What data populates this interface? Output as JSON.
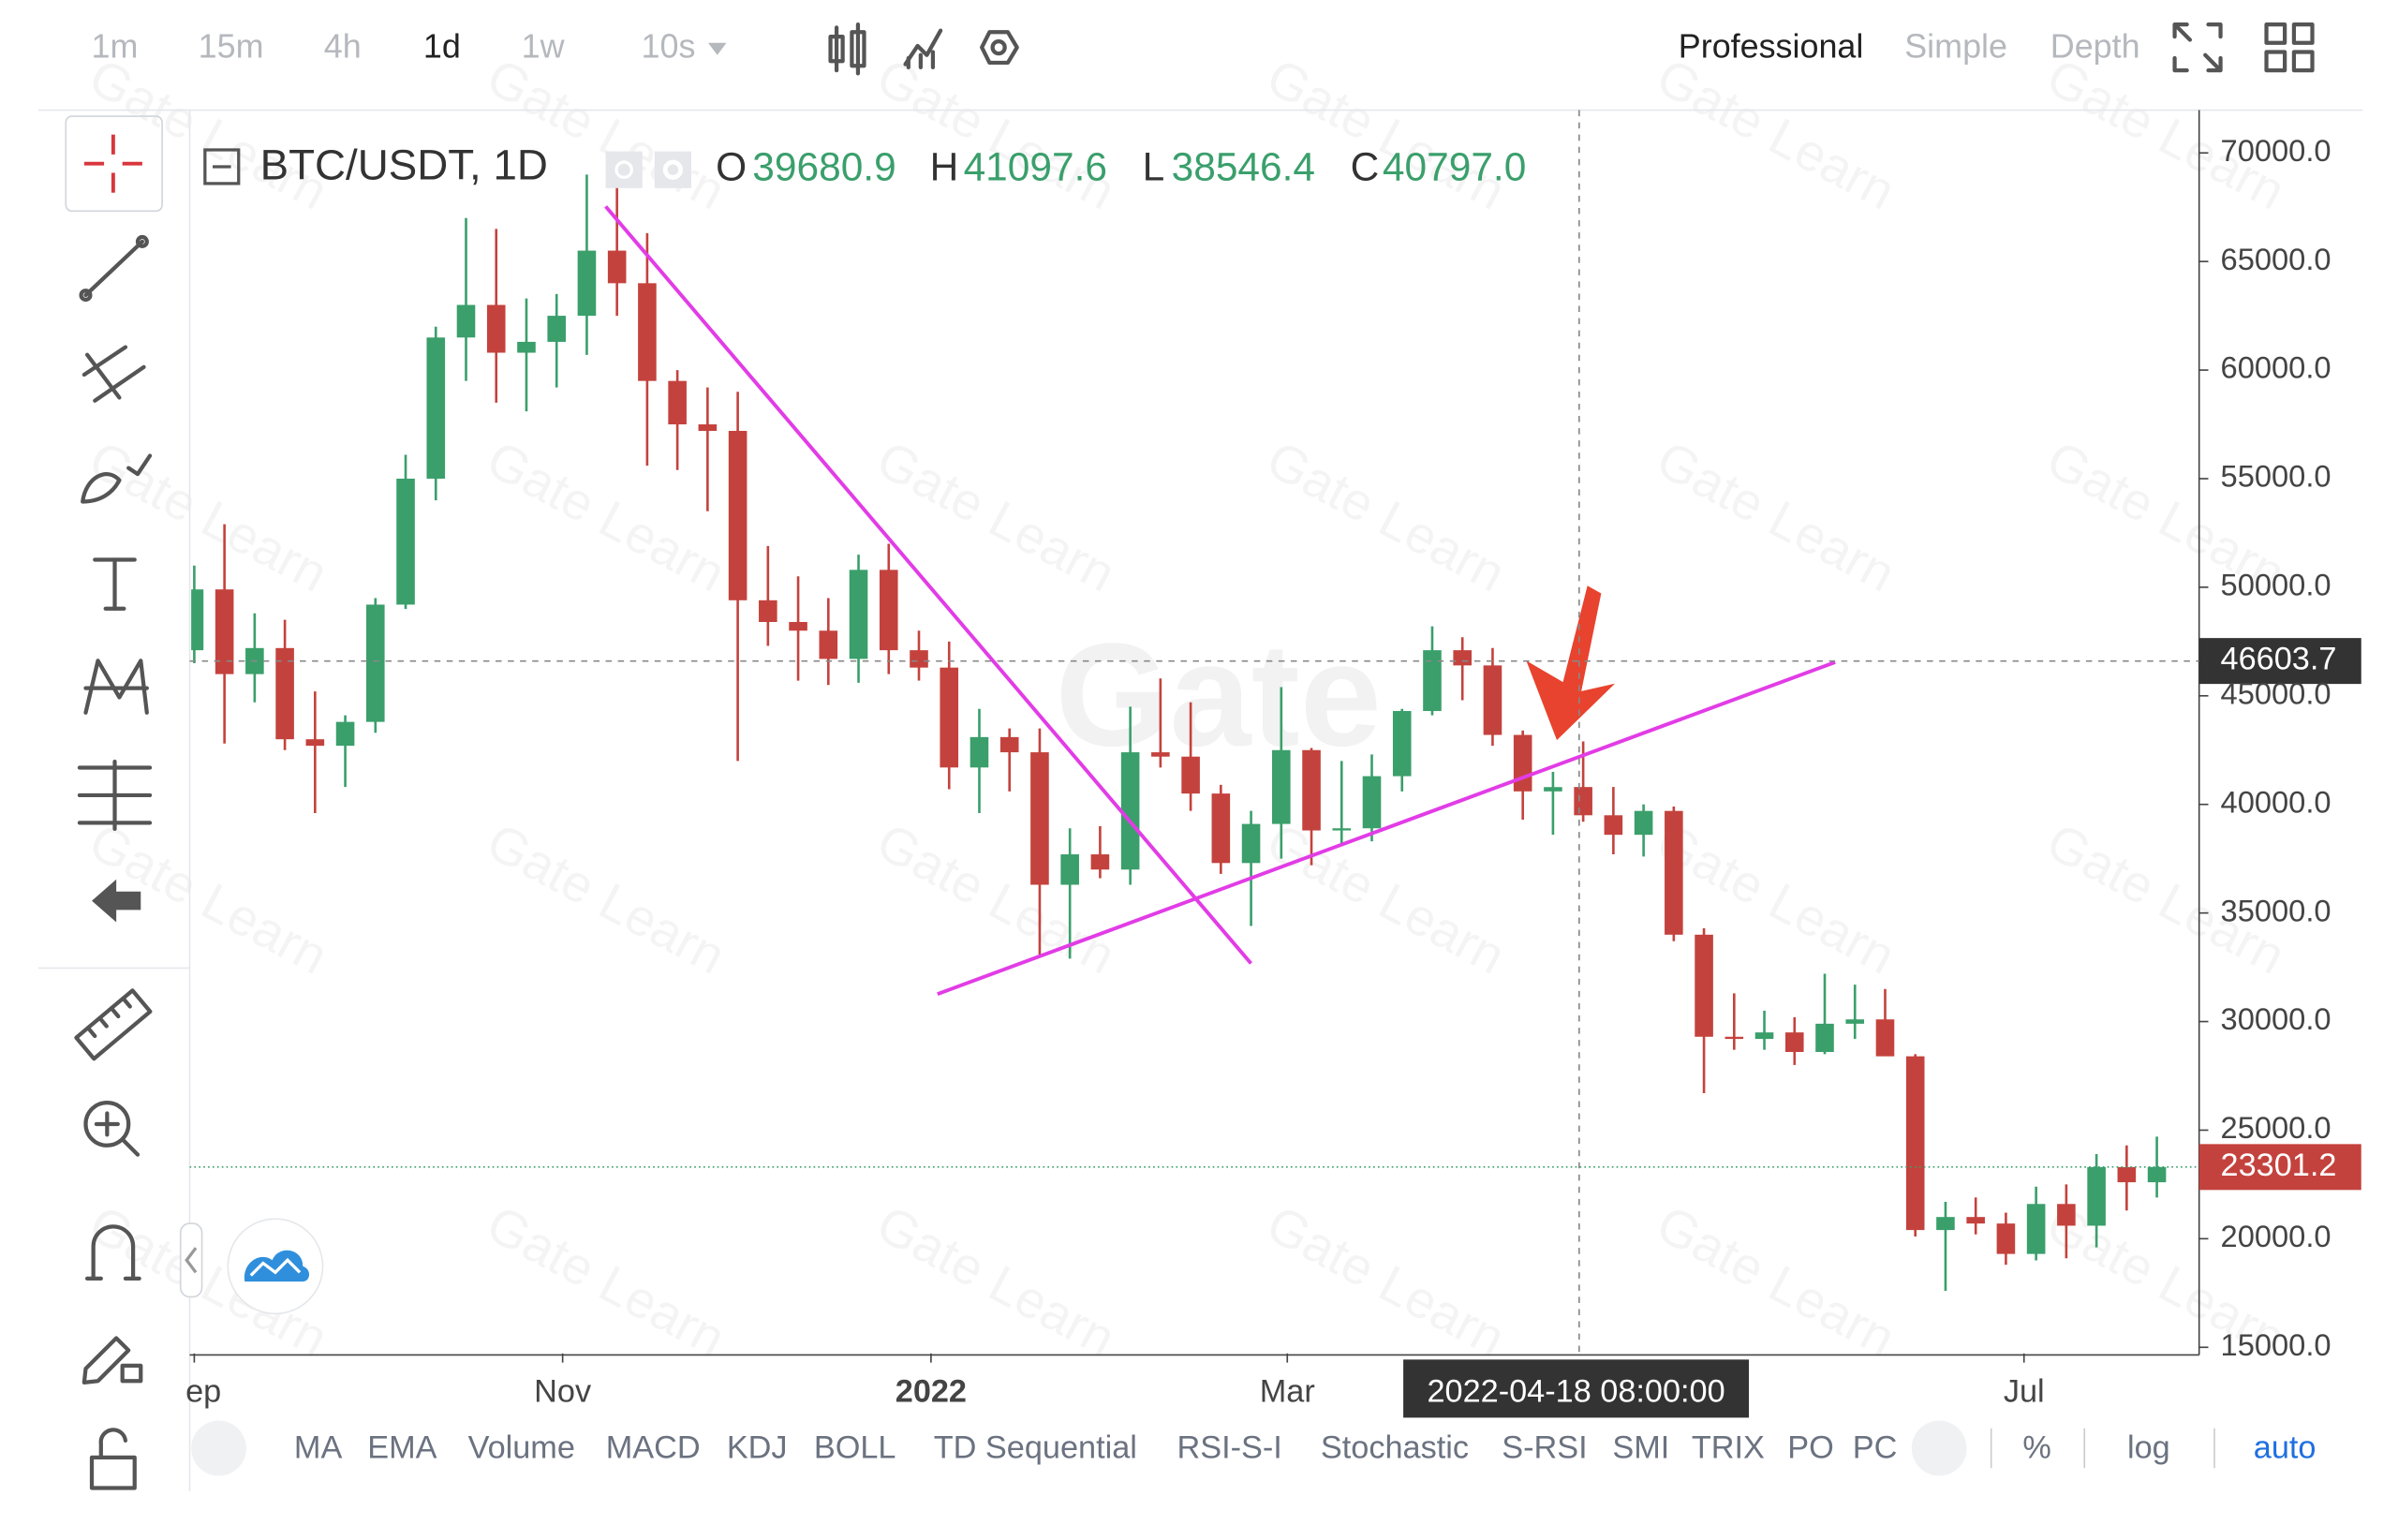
{
  "toolbar": {
    "intervals": [
      "1m",
      "15m",
      "4h",
      "1d",
      "1w",
      "10s"
    ],
    "views": [
      "Professional",
      "Simple",
      "Depth"
    ]
  },
  "legend": {
    "symbol": "BTC/USDT, 1D",
    "open_label": "O",
    "open": "39680.9",
    "high_label": "H",
    "high": "41097.6",
    "low_label": "L",
    "low": "38546.4",
    "close_label": "C",
    "close": "40797.0"
  },
  "indicators": [
    "MA",
    "EMA",
    "Volume",
    "MACD",
    "KDJ",
    "BOLL",
    "TD Sequential",
    "RSI-S-I",
    "Stochastic",
    "S-RSI",
    "SMI",
    "TRIX",
    "PO",
    "PC"
  ],
  "scale_options": [
    "%",
    "log",
    "auto"
  ],
  "watermark": "Gate Learn",
  "watermark_logo": "Gate",
  "chart_data": {
    "type": "candlestick",
    "x": [
      "2021-09-01",
      "2021-09-06",
      "2021-09-11",
      "2021-09-16",
      "2021-09-21",
      "2021-09-26",
      "2021-10-01",
      "2021-10-06",
      "2021-10-11",
      "2021-10-16",
      "2021-10-21",
      "2021-10-26",
      "2021-10-31",
      "2021-11-05",
      "2021-11-10",
      "2021-11-15",
      "2021-11-20",
      "2021-11-25",
      "2021-11-30",
      "2021-12-05",
      "2021-12-10",
      "2021-12-15",
      "2021-12-20",
      "2021-12-25",
      "2021-12-30",
      "2022-01-04",
      "2022-01-09",
      "2022-01-14",
      "2022-01-19",
      "2022-01-24",
      "2022-01-29",
      "2022-02-03",
      "2022-02-08",
      "2022-02-13",
      "2022-02-18",
      "2022-02-23",
      "2022-02-28",
      "2022-03-05",
      "2022-03-10",
      "2022-03-15",
      "2022-03-20",
      "2022-03-25",
      "2022-03-30",
      "2022-04-04",
      "2022-04-09",
      "2022-04-14",
      "2022-04-19",
      "2022-04-24",
      "2022-04-29",
      "2022-05-04",
      "2022-05-09",
      "2022-05-14",
      "2022-05-19",
      "2022-05-24",
      "2022-05-29",
      "2022-06-03",
      "2022-06-08",
      "2022-06-13",
      "2022-06-18",
      "2022-06-23",
      "2022-06-28",
      "2022-07-03",
      "2022-07-08",
      "2022-07-13",
      "2022-07-18",
      "2022-07-23"
    ],
    "open": [
      47100,
      49900,
      46000,
      47200,
      43000,
      42700,
      43800,
      49200,
      55000,
      61500,
      63000,
      60800,
      61300,
      62500,
      65500,
      64000,
      59500,
      57500,
      57200,
      49400,
      48400,
      48000,
      46700,
      50800,
      47100,
      46300,
      41700,
      43100,
      42400,
      36300,
      37700,
      37000,
      42400,
      42200,
      40500,
      37300,
      39100,
      42500,
      38800,
      38900,
      41300,
      44300,
      47100,
      46400,
      43200,
      40600,
      40800,
      39500,
      38600,
      39700,
      34000,
      29300,
      29200,
      29500,
      28600,
      29900,
      30100,
      28400,
      20400,
      21000,
      20700,
      19300,
      21600,
      20600,
      23300,
      22600
    ],
    "high": [
      51000,
      52900,
      48800,
      48500,
      45200,
      44100,
      49500,
      56100,
      62000,
      67000,
      66500,
      63300,
      63500,
      69000,
      69000,
      66300,
      60000,
      59200,
      59000,
      51900,
      50500,
      49500,
      51500,
      52000,
      48000,
      47500,
      44400,
      43500,
      43500,
      38900,
      39000,
      44500,
      45800,
      44700,
      40900,
      39700,
      45400,
      42600,
      42000,
      42300,
      44400,
      48200,
      47700,
      47200,
      43400,
      41500,
      42900,
      40800,
      40000,
      39900,
      34300,
      31300,
      30500,
      30200,
      32200,
      31700,
      31500,
      28500,
      21700,
      21900,
      21200,
      22400,
      22500,
      23900,
      24300,
      24700
    ],
    "low": [
      46500,
      42800,
      44700,
      42500,
      39600,
      40800,
      43300,
      49000,
      54000,
      59500,
      58500,
      58100,
      59200,
      60700,
      62500,
      55600,
      55400,
      53500,
      42000,
      47300,
      45700,
      45500,
      45600,
      46000,
      45700,
      40700,
      39600,
      40600,
      33000,
      32900,
      36600,
      36300,
      41700,
      39700,
      36800,
      34400,
      37500,
      37200,
      38200,
      38300,
      40600,
      44100,
      44800,
      42700,
      39300,
      38600,
      39200,
      37700,
      37600,
      33700,
      26700,
      28700,
      28700,
      28000,
      28500,
      29200,
      28800,
      20100,
      17600,
      20200,
      18800,
      19000,
      19100,
      19600,
      21300,
      21900
    ],
    "close": [
      49900,
      46000,
      47200,
      43000,
      42700,
      43800,
      49200,
      55000,
      61500,
      63000,
      60800,
      61300,
      62500,
      65500,
      64000,
      59500,
      57500,
      57200,
      49400,
      48400,
      48000,
      46700,
      50800,
      47100,
      46300,
      41700,
      43100,
      42400,
      36300,
      37700,
      37000,
      42400,
      42200,
      40500,
      37300,
      39100,
      42500,
      38800,
      38900,
      41300,
      44300,
      47100,
      46400,
      43200,
      40600,
      40797,
      39500,
      38600,
      39700,
      34000,
      29300,
      29200,
      29500,
      28600,
      29900,
      30100,
      28400,
      20400,
      21000,
      20700,
      19300,
      21600,
      20600,
      23300,
      22600,
      23301.2
    ],
    "up_color": "#3a9f6b",
    "down_color": "#c4423d",
    "xlim": [
      "2021-09-01",
      "2022-07-30"
    ],
    "xticks": [
      {
        "value": "2021-09-01",
        "label": "ep"
      },
      {
        "value": "2021-11-01",
        "label": "Nov"
      },
      {
        "value": "2022-01-01",
        "label": "2022"
      },
      {
        "value": "2022-03-01",
        "label": "Mar"
      },
      {
        "value": "2022-07-01",
        "label": "Jul"
      }
    ],
    "ylim": [
      14718,
      71760
    ],
    "yticks": [
      {
        "value": 15000,
        "label": "15000.0"
      },
      {
        "value": 20000,
        "label": "20000.0"
      },
      {
        "value": 25000,
        "label": "25000.0"
      },
      {
        "value": 30000,
        "label": "30000.0"
      },
      {
        "value": 35000,
        "label": "35000.0"
      },
      {
        "value": 40000,
        "label": "40000.0"
      },
      {
        "value": 45000,
        "label": "45000.0"
      },
      {
        "value": 50000,
        "label": "50000.0"
      },
      {
        "value": 55000,
        "label": "55000.0"
      },
      {
        "value": 60000,
        "label": "60000.0"
      },
      {
        "value": 65000,
        "label": "65000.0"
      },
      {
        "value": 70000,
        "label": "70000.0"
      }
    ],
    "grid": false,
    "crosshair_price": 46603.7,
    "crosshair_time": "2022-04-18 08:00:00",
    "last_price": 23301.2
  }
}
